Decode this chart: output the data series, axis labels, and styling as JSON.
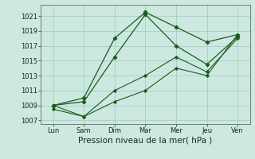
{
  "x_labels": [
    "Lun",
    "Sam",
    "Dim",
    "Mar",
    "Mer",
    "Jeu",
    "Ven"
  ],
  "x_positions": [
    0,
    1,
    2,
    3,
    4,
    5,
    6
  ],
  "series": [
    {
      "name": "line1_high",
      "y": [
        1009.0,
        1010.0,
        1018.0,
        1021.5,
        1019.5,
        1017.5,
        1018.5
      ],
      "color": "#1a5c1a",
      "linewidth": 0.9,
      "marker": "D",
      "markersize": 2.2
    },
    {
      "name": "line2_high2",
      "y": [
        1009.0,
        1009.5,
        1015.5,
        1021.2,
        1017.0,
        1014.5,
        1018.2
      ],
      "color": "#1a5c1a",
      "linewidth": 0.9,
      "marker": "D",
      "markersize": 2.2
    },
    {
      "name": "line3_low",
      "y": [
        1009.0,
        1007.5,
        1011.0,
        1013.0,
        1015.5,
        1013.5,
        1018.0
      ],
      "color": "#1a5c1a",
      "linewidth": 0.8,
      "marker": "D",
      "markersize": 1.8
    },
    {
      "name": "line4_low2",
      "y": [
        1008.5,
        1007.5,
        1009.5,
        1011.0,
        1014.0,
        1013.0,
        1018.5
      ],
      "color": "#1a5c1a",
      "linewidth": 0.8,
      "marker": "D",
      "markersize": 1.8
    }
  ],
  "ylim": [
    1006.5,
    1022.5
  ],
  "yticks": [
    1007,
    1009,
    1011,
    1013,
    1015,
    1017,
    1019,
    1021
  ],
  "xlim": [
    -0.4,
    6.4
  ],
  "xlabel": "Pression niveau de la mer( hPa )",
  "background_color": "#cce8e0",
  "grid_color": "#99ccbb",
  "axis_color": "#666666",
  "text_color": "#222222",
  "xlabel_fontsize": 7.5,
  "tick_fontsize": 6.0
}
